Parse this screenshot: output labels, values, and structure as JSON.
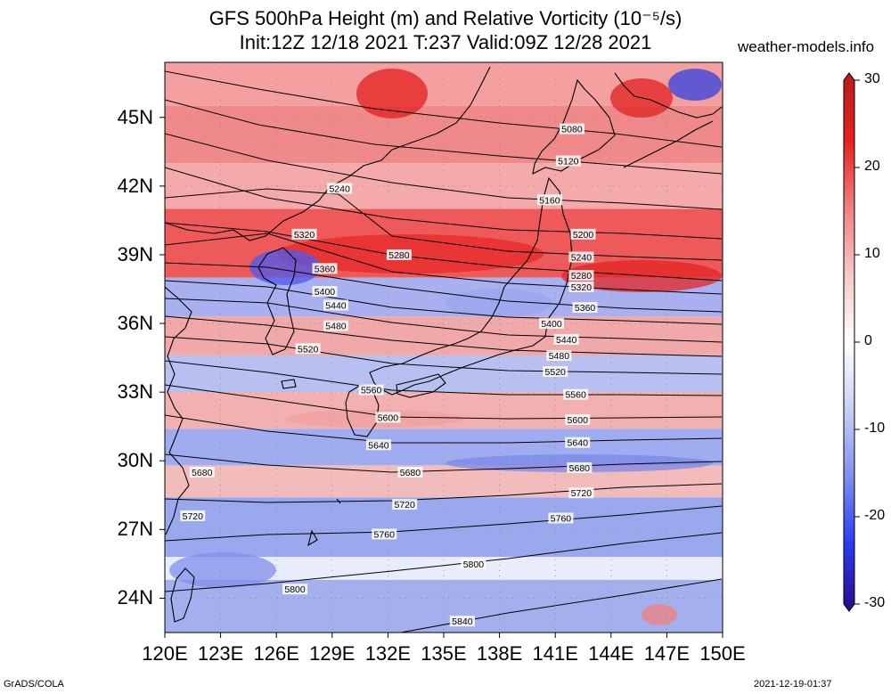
{
  "title_line1": "GFS 500hPa Height (m) and Relative Vorticity (10⁻⁵/s)",
  "title_line2": "Init:12Z 12/18 2021 T:237 Valid:09Z 12/28 2021",
  "site": "weather-models.info",
  "credit_left": "GrADS/COLA",
  "credit_right": "2021-12-19-01:37",
  "lat_labels": [
    "45N",
    "42N",
    "39N",
    "36N",
    "33N",
    "30N",
    "27N",
    "24N"
  ],
  "lon_labels": [
    "120E",
    "123E",
    "126E",
    "129E",
    "132E",
    "135E",
    "138E",
    "141E",
    "144E",
    "147E",
    "150E"
  ],
  "colorbar": {
    "labels": [
      "30",
      "20",
      "10",
      "0",
      "-10",
      "-20",
      "-30"
    ],
    "colors": [
      "#2a0a8c",
      "#2a3cf0",
      "#7f8ef0",
      "#c8d0f5",
      "#ffffff",
      "#f5c8c8",
      "#f08080",
      "#e82020",
      "#b41e1e"
    ]
  },
  "contours": [
    {
      "label": "5080",
      "pts": [
        [
          185,
          80
        ],
        [
          290,
          100
        ],
        [
          420,
          122
        ],
        [
          560,
          138
        ],
        [
          690,
          150
        ],
        [
          810,
          165
        ]
      ]
    },
    {
      "label": "5120",
      "pts": [
        [
          185,
          112
        ],
        [
          290,
          140
        ],
        [
          420,
          162
        ],
        [
          560,
          175
        ],
        [
          690,
          185
        ],
        [
          810,
          195
        ]
      ]
    },
    {
      "label": "5160",
      "pts": [
        [
          185,
          150
        ],
        [
          300,
          180
        ],
        [
          440,
          205
        ],
        [
          570,
          222
        ],
        [
          700,
          228
        ],
        [
          810,
          235
        ]
      ]
    },
    {
      "label": "5200",
      "pts": [
        [
          185,
          188
        ],
        [
          300,
          222
        ],
        [
          440,
          245
        ],
        [
          570,
          258
        ],
        [
          700,
          262
        ],
        [
          810,
          268
        ]
      ]
    },
    {
      "label": "5240",
      "pts": [
        [
          185,
          222
        ],
        [
          300,
          212
        ],
        [
          380,
          218
        ],
        [
          440,
          265
        ],
        [
          570,
          282
        ],
        [
          700,
          288
        ],
        [
          810,
          292
        ]
      ]
    },
    {
      "label": "5280",
      "pts": [
        [
          185,
          250
        ],
        [
          300,
          260
        ],
        [
          440,
          286
        ],
        [
          570,
          300
        ],
        [
          700,
          308
        ],
        [
          810,
          315
        ]
      ]
    },
    {
      "label": "5320",
      "pts": [
        [
          185,
          275
        ],
        [
          300,
          262
        ],
        [
          440,
          305
        ],
        [
          570,
          318
        ],
        [
          700,
          325
        ],
        [
          810,
          330
        ]
      ]
    },
    {
      "label": "5360",
      "pts": [
        [
          185,
          295
        ],
        [
          300,
          300
        ],
        [
          440,
          322
        ],
        [
          570,
          338
        ],
        [
          700,
          346
        ],
        [
          810,
          350
        ]
      ]
    },
    {
      "label": "5400",
      "pts": [
        [
          185,
          315
        ],
        [
          300,
          322
        ],
        [
          440,
          345
        ],
        [
          570,
          356
        ],
        [
          700,
          360
        ],
        [
          810,
          364
        ]
      ]
    },
    {
      "label": "5440",
      "pts": [
        [
          185,
          335
        ],
        [
          300,
          340
        ],
        [
          440,
          362
        ],
        [
          570,
          376
        ],
        [
          700,
          380
        ],
        [
          810,
          384
        ]
      ]
    },
    {
      "label": "5480",
      "pts": [
        [
          185,
          355
        ],
        [
          300,
          365
        ],
        [
          440,
          382
        ],
        [
          570,
          393
        ],
        [
          700,
          397
        ],
        [
          810,
          400
        ]
      ]
    },
    {
      "label": "5520",
      "pts": [
        [
          185,
          378
        ],
        [
          300,
          386
        ],
        [
          440,
          408
        ],
        [
          570,
          416
        ],
        [
          700,
          418
        ],
        [
          810,
          420
        ]
      ]
    },
    {
      "label": "5560",
      "pts": [
        [
          185,
          405
        ],
        [
          300,
          418
        ],
        [
          440,
          438
        ],
        [
          570,
          443
        ],
        [
          700,
          443
        ],
        [
          810,
          444
        ]
      ]
    },
    {
      "label": "5600",
      "pts": [
        [
          185,
          432
        ],
        [
          300,
          448
        ],
        [
          440,
          468
        ],
        [
          570,
          470
        ],
        [
          700,
          469
        ],
        [
          810,
          468
        ]
      ]
    },
    {
      "label": "5640",
      "pts": [
        [
          185,
          466
        ],
        [
          300,
          484
        ],
        [
          440,
          497
        ],
        [
          570,
          497
        ],
        [
          700,
          494
        ],
        [
          810,
          492
        ]
      ]
    },
    {
      "label": "5680",
      "pts": [
        [
          185,
          510
        ],
        [
          300,
          522
        ],
        [
          440,
          530
        ],
        [
          570,
          526
        ],
        [
          700,
          521
        ],
        [
          810,
          518
        ]
      ]
    },
    {
      "label": "5720",
      "pts": [
        [
          185,
          560
        ],
        [
          300,
          564
        ],
        [
          440,
          562
        ],
        [
          570,
          556
        ],
        [
          700,
          547
        ],
        [
          810,
          543
        ]
      ]
    },
    {
      "label": "5760",
      "pts": [
        [
          185,
          607
        ],
        [
          300,
          600
        ],
        [
          440,
          597
        ],
        [
          570,
          588
        ],
        [
          700,
          578
        ],
        [
          810,
          568
        ]
      ]
    },
    {
      "label": "5800",
      "pts": [
        [
          185,
          664
        ],
        [
          300,
          655
        ],
        [
          440,
          641
        ],
        [
          570,
          627
        ],
        [
          700,
          610
        ],
        [
          810,
          598
        ]
      ]
    },
    {
      "label": "5840",
      "pts": [
        [
          450,
          710
        ],
        [
          570,
          688
        ],
        [
          700,
          668
        ],
        [
          810,
          650
        ]
      ]
    }
  ],
  "contour_labels": [
    {
      "text": "5080",
      "lon": 141.9,
      "lat": 44.5
    },
    {
      "text": "5120",
      "lon": 141.7,
      "lat": 43.1
    },
    {
      "text": "5160",
      "lon": 140.7,
      "lat": 41.4
    },
    {
      "text": "5240",
      "lon": 129.4,
      "lat": 41.9
    },
    {
      "text": "5200",
      "lon": 142.5,
      "lat": 39.9
    },
    {
      "text": "5320",
      "lon": 127.5,
      "lat": 39.9
    },
    {
      "text": "5280",
      "lon": 132.6,
      "lat": 39.0
    },
    {
      "text": "5240",
      "lon": 142.4,
      "lat": 38.9
    },
    {
      "text": "5360",
      "lon": 128.6,
      "lat": 38.4
    },
    {
      "text": "5280",
      "lon": 142.4,
      "lat": 38.1
    },
    {
      "text": "5320",
      "lon": 142.4,
      "lat": 37.6
    },
    {
      "text": "5400",
      "lon": 128.6,
      "lat": 37.4
    },
    {
      "text": "5360",
      "lon": 142.6,
      "lat": 36.7
    },
    {
      "text": "5440",
      "lon": 129.2,
      "lat": 36.8
    },
    {
      "text": "5400",
      "lon": 140.8,
      "lat": 36.0
    },
    {
      "text": "5480",
      "lon": 129.2,
      "lat": 35.9
    },
    {
      "text": "5440",
      "lon": 141.6,
      "lat": 35.3
    },
    {
      "text": "5520",
      "lon": 127.7,
      "lat": 34.9
    },
    {
      "text": "5480",
      "lon": 141.2,
      "lat": 34.6
    },
    {
      "text": "5520",
      "lon": 141.0,
      "lat": 33.9
    },
    {
      "text": "5560",
      "lon": 131.1,
      "lat": 33.1
    },
    {
      "text": "5560",
      "lon": 142.1,
      "lat": 32.9
    },
    {
      "text": "5600",
      "lon": 132.0,
      "lat": 31.9
    },
    {
      "text": "5600",
      "lon": 142.2,
      "lat": 31.8
    },
    {
      "text": "5640",
      "lon": 131.5,
      "lat": 30.7
    },
    {
      "text": "5640",
      "lon": 142.2,
      "lat": 30.8
    },
    {
      "text": "5680",
      "lon": 122.0,
      "lat": 29.5
    },
    {
      "text": "5680",
      "lon": 133.2,
      "lat": 29.5
    },
    {
      "text": "5680",
      "lon": 142.3,
      "lat": 29.7
    },
    {
      "text": "5720",
      "lon": 142.4,
      "lat": 28.6
    },
    {
      "text": "5720",
      "lon": 121.5,
      "lat": 27.6
    },
    {
      "text": "5720",
      "lon": 132.9,
      "lat": 28.1
    },
    {
      "text": "5760",
      "lon": 141.3,
      "lat": 27.5
    },
    {
      "text": "5760",
      "lon": 131.8,
      "lat": 26.8
    },
    {
      "text": "5800",
      "lon": 136.6,
      "lat": 25.5
    },
    {
      "text": "5800",
      "lon": 127.0,
      "lat": 24.4
    },
    {
      "text": "5840",
      "lon": 136.0,
      "lat": 23.0
    }
  ],
  "vorticity_bands": [
    {
      "lat_top": 48.0,
      "lat_bot": 45.5,
      "color": "#f5a0a0"
    },
    {
      "lat_top": 45.5,
      "lat_bot": 43.0,
      "color": "#f08a8a"
    },
    {
      "lat_top": 43.0,
      "lat_bot": 41.0,
      "color": "#f4aaaa"
    },
    {
      "lat_top": 41.0,
      "lat_bot": 38.0,
      "color": "#ee5a5a"
    },
    {
      "lat_top": 38.0,
      "lat_bot": 36.3,
      "color": "#a8b0f0"
    },
    {
      "lat_top": 36.3,
      "lat_bot": 34.6,
      "color": "#f0a8a8"
    },
    {
      "lat_top": 34.6,
      "lat_bot": 33.0,
      "color": "#b8c0f2"
    },
    {
      "lat_top": 33.0,
      "lat_bot": 31.4,
      "color": "#f2b0b0"
    },
    {
      "lat_top": 31.4,
      "lat_bot": 29.8,
      "color": "#a0acf0"
    },
    {
      "lat_top": 29.8,
      "lat_bot": 28.4,
      "color": "#f3bcbc"
    },
    {
      "lat_top": 28.4,
      "lat_bot": 25.8,
      "color": "#9aa8ee"
    },
    {
      "lat_top": 25.8,
      "lat_bot": 24.8,
      "color": "#e8ecfb"
    },
    {
      "lat_top": 24.8,
      "lat_bot": 22.5,
      "color": "#a4b0ee"
    }
  ]
}
